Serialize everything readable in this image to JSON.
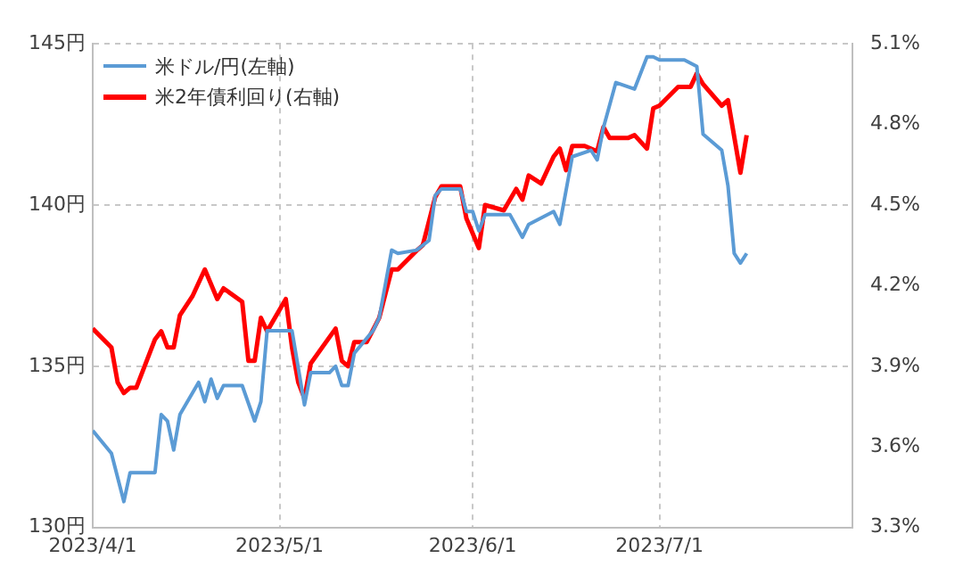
{
  "chart_data": {
    "type": "line",
    "legend": "top left",
    "grid": true,
    "marker": "none",
    "line_style": "solid",
    "xlim": [
      "2023-04-01",
      "2023-08-01"
    ],
    "xticks": [
      {
        "value": "2023-04-01",
        "label": "2023/4/1"
      },
      {
        "value": "2023-05-01",
        "label": "2023/5/1"
      },
      {
        "value": "2023-06-01",
        "label": "2023/6/1"
      },
      {
        "value": "2023-07-01",
        "label": "2023/7/1"
      }
    ],
    "ylim": [
      130,
      145
    ],
    "yticks": [
      {
        "value": 130,
        "label": "130円"
      },
      {
        "value": 135,
        "label": "135円"
      },
      {
        "value": 140,
        "label": "140円"
      },
      {
        "value": 145,
        "label": "145円"
      }
    ],
    "y2lim": [
      3.3,
      5.1
    ],
    "y2ticks": [
      {
        "value": 3.3,
        "label": "3.3%"
      },
      {
        "value": 3.6,
        "label": "3.6%"
      },
      {
        "value": 3.9,
        "label": "3.9%"
      },
      {
        "value": 4.2,
        "label": "4.2%"
      },
      {
        "value": 4.5,
        "label": "4.5%"
      },
      {
        "value": 4.8,
        "label": "4.8%"
      },
      {
        "value": 5.1,
        "label": "5.1%"
      }
    ],
    "series": [
      {
        "name": "米ドル/円(左軸)",
        "color": "#5b9bd5",
        "x": [
          "2023-04-01",
          "2023-04-04",
          "2023-04-06",
          "2023-04-07",
          "2023-04-11",
          "2023-04-12",
          "2023-04-13",
          "2023-04-14",
          "2023-04-15",
          "2023-04-18",
          "2023-04-19",
          "2023-04-20",
          "2023-04-21",
          "2023-04-22",
          "2023-04-25",
          "2023-04-27",
          "2023-04-28",
          "2023-04-29",
          "2023-05-03",
          "2023-05-05",
          "2023-05-06",
          "2023-05-09",
          "2023-05-10",
          "2023-05-11",
          "2023-05-12",
          "2023-05-13",
          "2023-05-16",
          "2023-05-17",
          "2023-05-19",
          "2023-05-20",
          "2023-05-23",
          "2023-05-25",
          "2023-05-26",
          "2023-05-27",
          "2023-05-30",
          "2023-05-31",
          "2023-06-01",
          "2023-06-02",
          "2023-06-03",
          "2023-06-07",
          "2023-06-09",
          "2023-06-10",
          "2023-06-14",
          "2023-06-15",
          "2023-06-17",
          "2023-06-20",
          "2023-06-21",
          "2023-06-22",
          "2023-06-24",
          "2023-06-27",
          "2023-06-29",
          "2023-06-30",
          "2023-07-01",
          "2023-07-04",
          "2023-07-05",
          "2023-07-07",
          "2023-07-08",
          "2023-07-11",
          "2023-07-12",
          "2023-07-13",
          "2023-07-14",
          "2023-07-15"
        ],
        "values": [
          133.0,
          132.3,
          130.8,
          131.7,
          131.7,
          133.5,
          133.3,
          132.4,
          133.5,
          134.5,
          133.9,
          134.6,
          134.0,
          134.4,
          134.4,
          133.3,
          133.9,
          136.1,
          136.1,
          133.8,
          134.8,
          134.8,
          135.0,
          134.4,
          134.4,
          135.4,
          136.1,
          136.5,
          138.6,
          138.5,
          138.6,
          138.9,
          140.3,
          140.5,
          140.5,
          139.8,
          139.8,
          139.2,
          139.7,
          139.7,
          139.0,
          139.4,
          139.8,
          139.4,
          141.5,
          141.7,
          141.4,
          142.4,
          143.8,
          143.6,
          144.6,
          144.6,
          144.5,
          144.5,
          144.5,
          144.3,
          142.2,
          141.7,
          140.6,
          138.5,
          138.2,
          138.5
        ]
      },
      {
        "name": "米2年債利回り(右軸)",
        "color": "#ff0000",
        "axis": "y2",
        "x": [
          "2023-04-01",
          "2023-04-04",
          "2023-04-05",
          "2023-04-06",
          "2023-04-07",
          "2023-04-08",
          "2023-04-11",
          "2023-04-12",
          "2023-04-13",
          "2023-04-14",
          "2023-04-15",
          "2023-04-17",
          "2023-04-19",
          "2023-04-21",
          "2023-04-22",
          "2023-04-25",
          "2023-04-26",
          "2023-04-27",
          "2023-04-28",
          "2023-04-29",
          "2023-05-02",
          "2023-05-03",
          "2023-05-04",
          "2023-05-05",
          "2023-05-06",
          "2023-05-10",
          "2023-05-11",
          "2023-05-12",
          "2023-05-13",
          "2023-05-15",
          "2023-05-17",
          "2023-05-19",
          "2023-05-20",
          "2023-05-23",
          "2023-05-24",
          "2023-05-26",
          "2023-05-27",
          "2023-05-30",
          "2023-05-31",
          "2023-06-02",
          "2023-06-03",
          "2023-06-06",
          "2023-06-08",
          "2023-06-09",
          "2023-06-10",
          "2023-06-12",
          "2023-06-14",
          "2023-06-15",
          "2023-06-16",
          "2023-06-17",
          "2023-06-19",
          "2023-06-21",
          "2023-06-22",
          "2023-06-23",
          "2023-06-26",
          "2023-06-27",
          "2023-06-29",
          "2023-06-30",
          "2023-07-01",
          "2023-07-04",
          "2023-07-06",
          "2023-07-07",
          "2023-07-08",
          "2023-07-11",
          "2023-07-12",
          "2023-07-14",
          "2023-07-15"
        ],
        "values": [
          4.04,
          3.97,
          3.84,
          3.8,
          3.82,
          3.82,
          4.0,
          4.03,
          3.97,
          3.97,
          4.09,
          4.16,
          4.26,
          4.15,
          4.19,
          4.14,
          3.92,
          3.92,
          4.08,
          4.03,
          4.15,
          3.97,
          3.84,
          3.78,
          3.91,
          4.04,
          3.92,
          3.9,
          3.99,
          3.99,
          4.08,
          4.26,
          4.26,
          4.33,
          4.35,
          4.53,
          4.57,
          4.57,
          4.45,
          4.34,
          4.5,
          4.48,
          4.56,
          4.52,
          4.61,
          4.58,
          4.68,
          4.71,
          4.63,
          4.72,
          4.72,
          4.7,
          4.79,
          4.75,
          4.75,
          4.76,
          4.71,
          4.86,
          4.87,
          4.94,
          4.94,
          4.99,
          4.95,
          4.87,
          4.89,
          4.62,
          4.76
        ]
      }
    ]
  }
}
